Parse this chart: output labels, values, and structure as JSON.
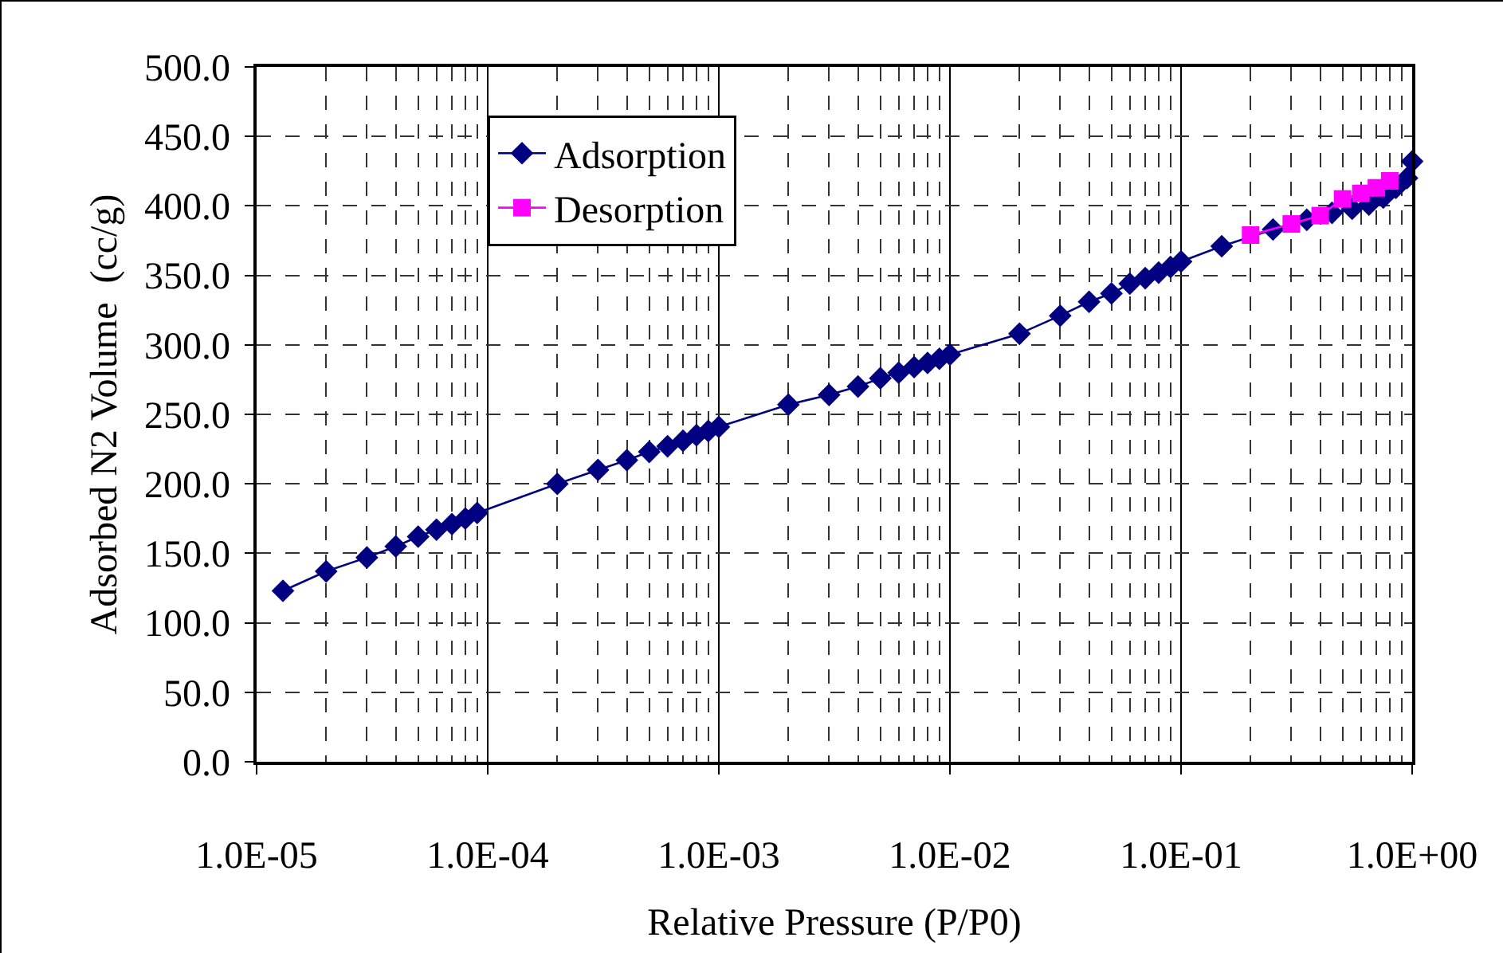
{
  "chart_data": {
    "type": "line",
    "xlabel": "Relative Pressure (P/P0)",
    "ylabel": "Adsorbed N2 Volume  (cc/g)",
    "log": "x",
    "grid": true,
    "legend": "top left",
    "marker": "diamond",
    "line_style": "solid",
    "xlim": [
      1e-05,
      1
    ],
    "xticks": [
      {
        "value": 1e-05,
        "label": "1.0E-05"
      },
      {
        "value": 0.0001,
        "label": "1.0E-04"
      },
      {
        "value": 0.001,
        "label": "1.0E-03"
      },
      {
        "value": 0.01,
        "label": "1.0E-02"
      },
      {
        "value": 0.1,
        "label": "1.0E-01"
      },
      {
        "value": 1,
        "label": "1.0E+00"
      }
    ],
    "ylim": [
      0,
      500
    ],
    "yticks": [
      {
        "value": 0,
        "label": "0.0"
      },
      {
        "value": 50,
        "label": "50.0"
      },
      {
        "value": 100,
        "label": "100.0"
      },
      {
        "value": 150,
        "label": "150.0"
      },
      {
        "value": 200,
        "label": "200.0"
      },
      {
        "value": 250,
        "label": "250.0"
      },
      {
        "value": 300,
        "label": "300.0"
      },
      {
        "value": 350,
        "label": "350.0"
      },
      {
        "value": 400,
        "label": "400.0"
      },
      {
        "value": 450,
        "label": "450.0"
      },
      {
        "value": 500,
        "label": "500.0"
      }
    ],
    "series": [
      {
        "name": "Adsorption",
        "color": "#000080",
        "x": [
          1.3e-05,
          2e-05,
          3e-05,
          4e-05,
          5e-05,
          6e-05,
          7e-05,
          8e-05,
          9e-05,
          0.0002,
          0.0003,
          0.0004,
          0.0005,
          0.0006,
          0.0007,
          0.0008,
          0.0009,
          0.001,
          0.002,
          0.003,
          0.004,
          0.005,
          0.006,
          0.007,
          0.008,
          0.009,
          0.01,
          0.02,
          0.03,
          0.04,
          0.05,
          0.06,
          0.07,
          0.08,
          0.09,
          0.1,
          0.15,
          0.25,
          0.35,
          0.45,
          0.55,
          0.65,
          0.75,
          0.85,
          0.95,
          1.0
        ],
        "values": [
          123,
          137,
          147,
          155,
          162,
          167,
          171,
          175,
          179,
          200,
          210,
          217,
          223,
          227,
          231,
          235,
          238,
          241,
          257,
          264,
          270,
          276,
          280,
          284,
          287,
          290,
          293,
          308,
          321,
          331,
          337,
          344,
          348,
          352,
          356,
          360,
          371,
          383,
          390,
          395,
          398,
          401,
          406,
          413,
          420,
          432
        ]
      },
      {
        "name": "Desorption",
        "color": "#ff00ff",
        "marker": "square",
        "x": [
          0.2,
          0.3,
          0.4,
          0.5,
          0.6,
          0.7,
          0.8
        ],
        "values": [
          379,
          387,
          393,
          405,
          409,
          413,
          418
        ]
      }
    ]
  }
}
